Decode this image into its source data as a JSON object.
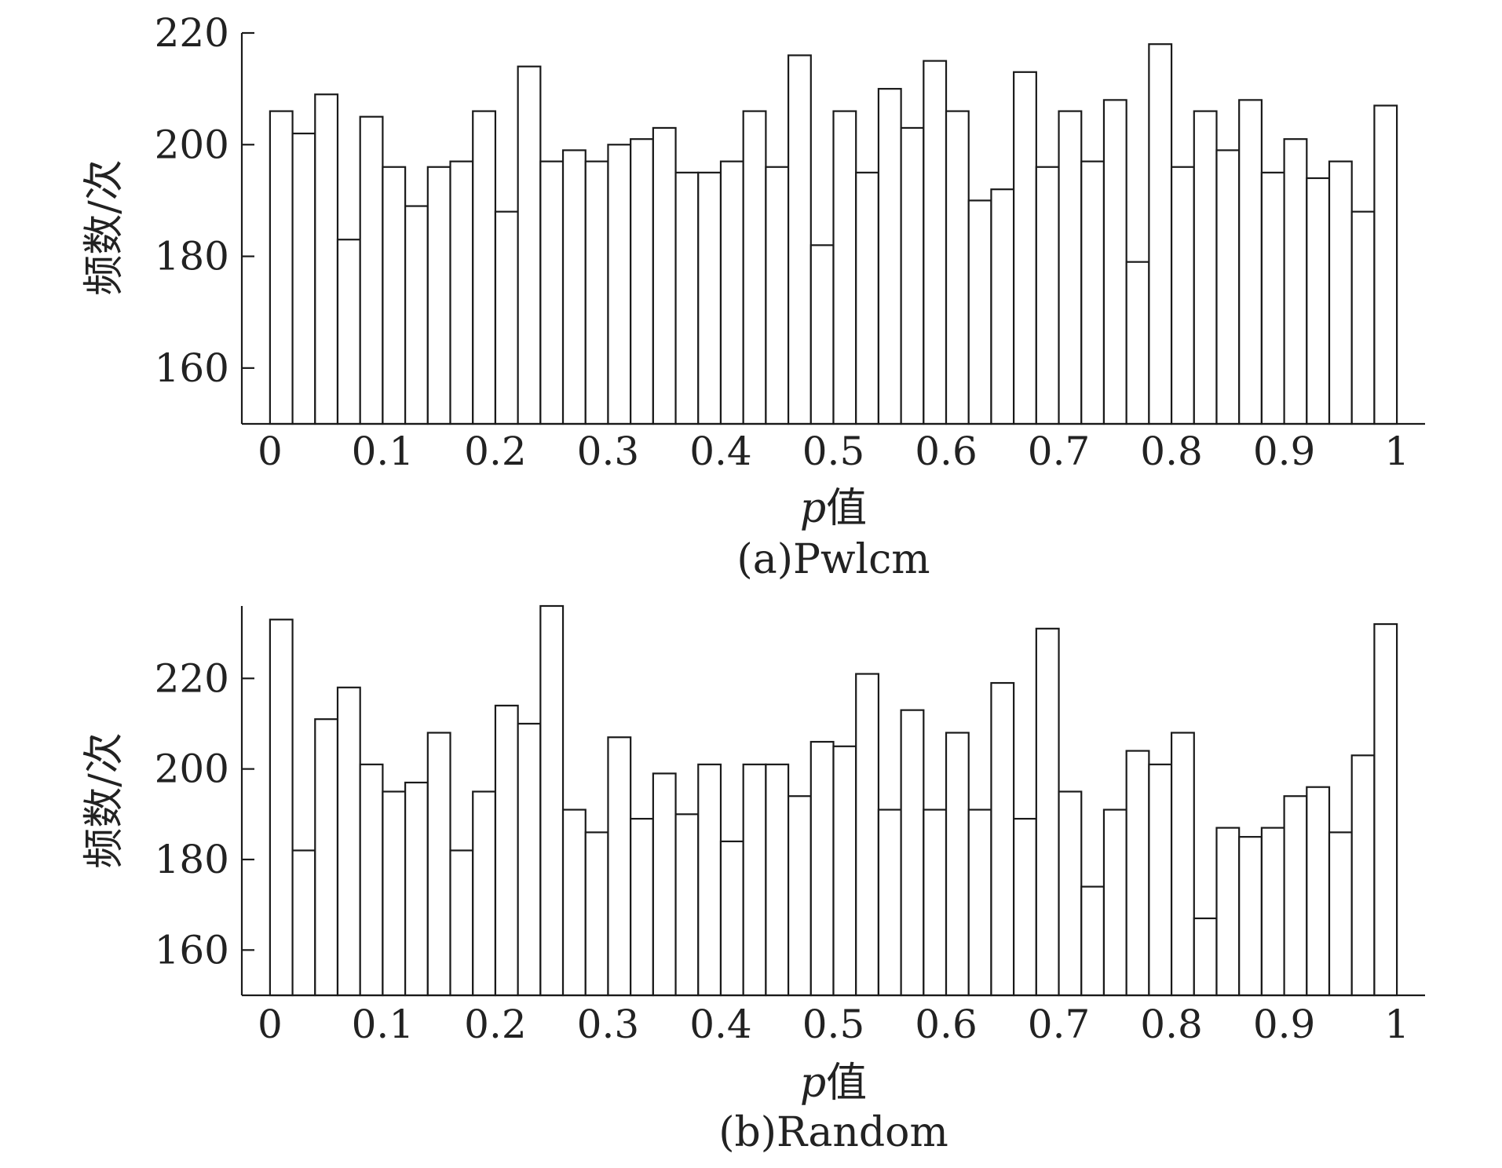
{
  "chart_data": [
    {
      "type": "bar",
      "caption": "(a)Pwlcm",
      "xlabel_var": "p",
      "xlabel_text": "值",
      "ylabel": "频数/次",
      "xlim": [
        -0.025,
        1.025
      ],
      "ylim": [
        150,
        220
      ],
      "yticks": [
        160,
        180,
        200,
        220
      ],
      "xticks": [
        0,
        0.1,
        0.2,
        0.3,
        0.4,
        0.5,
        0.6,
        0.7,
        0.8,
        0.9,
        1
      ],
      "xtick_labels": [
        "0",
        "0.1",
        "0.2",
        "0.3",
        "0.4",
        "0.5",
        "0.6",
        "0.7",
        "0.8",
        "0.9",
        "1"
      ],
      "bin_width": 0.02,
      "x": [
        0.01,
        0.03,
        0.05,
        0.07,
        0.09,
        0.11,
        0.13,
        0.15,
        0.17,
        0.19,
        0.21,
        0.23,
        0.25,
        0.27,
        0.29,
        0.31,
        0.33,
        0.35,
        0.37,
        0.39,
        0.41,
        0.43,
        0.45,
        0.47,
        0.49,
        0.51,
        0.53,
        0.55,
        0.57,
        0.59,
        0.61,
        0.63,
        0.65,
        0.67,
        0.69,
        0.71,
        0.73,
        0.75,
        0.77,
        0.79,
        0.81,
        0.83,
        0.85,
        0.87,
        0.89,
        0.91,
        0.93,
        0.95,
        0.97,
        0.99
      ],
      "values": [
        206,
        202,
        209,
        183,
        205,
        196,
        189,
        196,
        197,
        206,
        188,
        214,
        197,
        199,
        197,
        200,
        201,
        203,
        195,
        195,
        197,
        206,
        196,
        216,
        182,
        206,
        195,
        210,
        203,
        215,
        206,
        190,
        192,
        213,
        196,
        206,
        197,
        208,
        179,
        218,
        196,
        206,
        199,
        208,
        195,
        201,
        194,
        197,
        188,
        207
      ]
    },
    {
      "type": "bar",
      "caption": "(b)Random",
      "xlabel_var": "p",
      "xlabel_text": "值",
      "ylabel": "频数/次",
      "xlim": [
        -0.025,
        1.025
      ],
      "ylim": [
        150,
        236
      ],
      "yticks": [
        160,
        180,
        200,
        220
      ],
      "xticks": [
        0,
        0.1,
        0.2,
        0.3,
        0.4,
        0.5,
        0.6,
        0.7,
        0.8,
        0.9,
        1
      ],
      "xtick_labels": [
        "0",
        "0.1",
        "0.2",
        "0.3",
        "0.4",
        "0.5",
        "0.6",
        "0.7",
        "0.8",
        "0.9",
        "1"
      ],
      "bin_width": 0.02,
      "x": [
        0.01,
        0.03,
        0.05,
        0.07,
        0.09,
        0.11,
        0.13,
        0.15,
        0.17,
        0.19,
        0.21,
        0.23,
        0.25,
        0.27,
        0.29,
        0.31,
        0.33,
        0.35,
        0.37,
        0.39,
        0.41,
        0.43,
        0.45,
        0.47,
        0.49,
        0.51,
        0.53,
        0.55,
        0.57,
        0.59,
        0.61,
        0.63,
        0.65,
        0.67,
        0.69,
        0.71,
        0.73,
        0.75,
        0.77,
        0.79,
        0.81,
        0.83,
        0.85,
        0.87,
        0.89,
        0.91,
        0.93,
        0.95,
        0.97,
        0.99
      ],
      "values": [
        233,
        182,
        211,
        218,
        201,
        195,
        197,
        208,
        182,
        195,
        214,
        210,
        236,
        191,
        186,
        207,
        189,
        199,
        190,
        201,
        184,
        201,
        201,
        194,
        206,
        205,
        221,
        191,
        213,
        191,
        208,
        191,
        219,
        189,
        231,
        195,
        174,
        191,
        204,
        201,
        208,
        167,
        187,
        185,
        187,
        194,
        196,
        186,
        203,
        232
      ]
    }
  ]
}
